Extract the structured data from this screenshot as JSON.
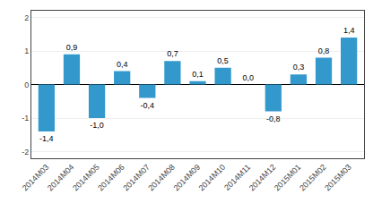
{
  "chart_data": {
    "type": "bar",
    "categories": [
      "2014M03",
      "2014M04",
      "2014M05",
      "2014M06",
      "2014M07",
      "2014M08",
      "2014M09",
      "2014M10",
      "2014M11",
      "2014M12",
      "2015M01",
      "2015M02",
      "2015M03"
    ],
    "values": [
      -1.4,
      0.9,
      -1.0,
      0.4,
      -0.4,
      0.7,
      0.1,
      0.5,
      0.0,
      -0.8,
      0.3,
      0.8,
      1.4
    ],
    "value_labels": [
      "-1,4",
      "0,9",
      "-1,0",
      "0,4",
      "-0,4",
      "0,7",
      "0,1",
      "0,5",
      "0,0",
      "-0,8",
      "0,3",
      "0,8",
      "1,4"
    ],
    "color": "#3399cc",
    "ylim": [
      -2.2,
      2.2
    ],
    "yticks": [
      -2,
      -1,
      0,
      1,
      2
    ],
    "grid": true,
    "data_labels": true
  }
}
